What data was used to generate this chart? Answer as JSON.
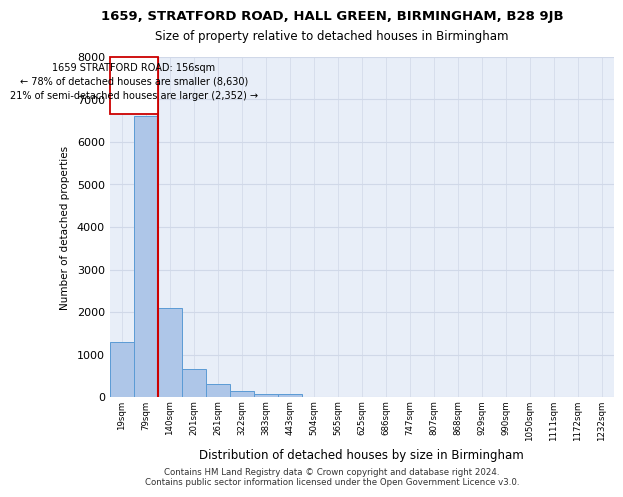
{
  "title1": "1659, STRATFORD ROAD, HALL GREEN, BIRMINGHAM, B28 9JB",
  "title2": "Size of property relative to detached houses in Birmingham",
  "xlabel": "Distribution of detached houses by size in Birmingham",
  "ylabel": "Number of detached properties",
  "bin_labels": [
    "19sqm",
    "79sqm",
    "140sqm",
    "201sqm",
    "261sqm",
    "322sqm",
    "383sqm",
    "443sqm",
    "504sqm",
    "565sqm",
    "625sqm",
    "686sqm",
    "747sqm",
    "807sqm",
    "868sqm",
    "929sqm",
    "990sqm",
    "1050sqm",
    "1111sqm",
    "1172sqm",
    "1232sqm"
  ],
  "bar_values": [
    1300,
    6600,
    2100,
    650,
    300,
    150,
    80,
    60,
    10,
    5,
    2,
    1,
    0,
    0,
    0,
    0,
    0,
    0,
    0,
    0,
    0
  ],
  "bar_color": "#aec6e8",
  "bar_edge_color": "#5b9bd5",
  "property_label": "1659 STRATFORD ROAD: 156sqm",
  "annotation_line1": "← 78% of detached houses are smaller (8,630)",
  "annotation_line2": "21% of semi-detached houses are larger (2,352) →",
  "vline_color": "#cc0000",
  "annotation_box_color": "#ffffff",
  "annotation_box_edge": "#cc0000",
  "ylim": [
    0,
    8000
  ],
  "yticks": [
    0,
    1000,
    2000,
    3000,
    4000,
    5000,
    6000,
    7000,
    8000
  ],
  "grid_color": "#d0d8e8",
  "background_color": "#e8eef8",
  "footer1": "Contains HM Land Registry data © Crown copyright and database right 2024.",
  "footer2": "Contains public sector information licensed under the Open Government Licence v3.0."
}
